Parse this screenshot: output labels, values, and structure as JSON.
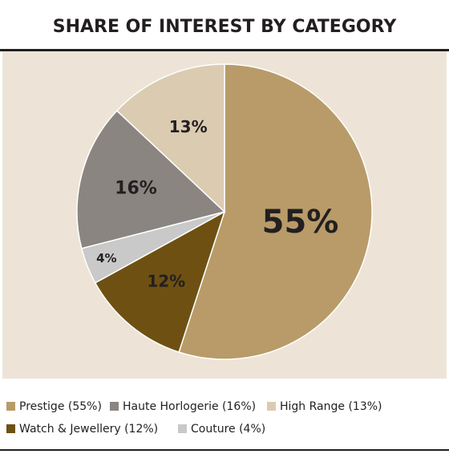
{
  "chart_data": {
    "type": "pie",
    "title": "SHARE OF INTEREST BY CATEGORY",
    "categories": [
      "Prestige (55%)",
      "Watch & Jewellery (12%)",
      "Couture (4%)",
      "Haute Horlogerie (16%)",
      "High Range (13%)"
    ],
    "values": [
      55,
      12,
      4,
      16,
      13
    ],
    "value_labels": [
      "55%",
      "12%",
      "4%",
      "16%",
      "13%"
    ],
    "colors": [
      "#b89b68",
      "#6e5012",
      "#c9c9c9",
      "#8a8581",
      "#dbcbb1"
    ]
  }
}
